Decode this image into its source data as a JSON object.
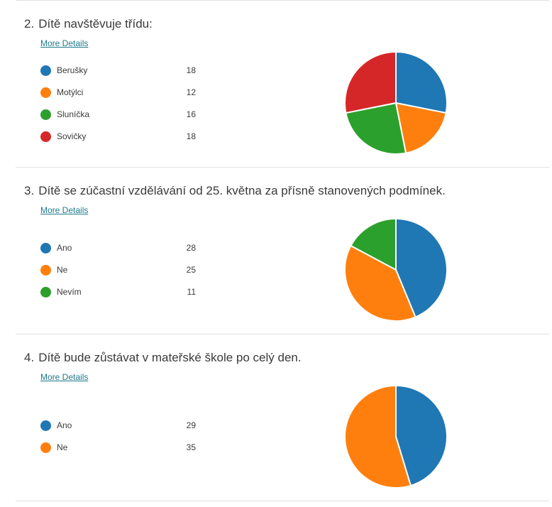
{
  "more_details_label": "More Details",
  "colors": [
    "#1f77b4",
    "#ff7f0e",
    "#2ca02c",
    "#d62728"
  ],
  "questions": [
    {
      "number": "2.",
      "title": "Dítě navštěvuje třídu:"
    },
    {
      "number": "3.",
      "title": "Dítě se zúčastní vzdělávání od 25. května za přísně stanovených podmínek."
    },
    {
      "number": "4.",
      "title": "Dítě bude zůstávat v mateřské škole po celý den."
    }
  ],
  "chart_data": [
    {
      "type": "pie",
      "categories": [
        "Berušky",
        "Motýlci",
        "Sluníčka",
        "Sovičky"
      ],
      "values": [
        18,
        12,
        16,
        18
      ],
      "colors": [
        "#1f77b4",
        "#ff7f0e",
        "#2ca02c",
        "#d62728"
      ]
    },
    {
      "type": "pie",
      "categories": [
        "Ano",
        "Ne",
        "Nevím"
      ],
      "values": [
        28,
        25,
        11
      ],
      "colors": [
        "#1f77b4",
        "#ff7f0e",
        "#2ca02c"
      ]
    },
    {
      "type": "pie",
      "categories": [
        "Ano",
        "Ne"
      ],
      "values": [
        29,
        35
      ],
      "colors": [
        "#1f77b4",
        "#ff7f0e"
      ]
    }
  ]
}
